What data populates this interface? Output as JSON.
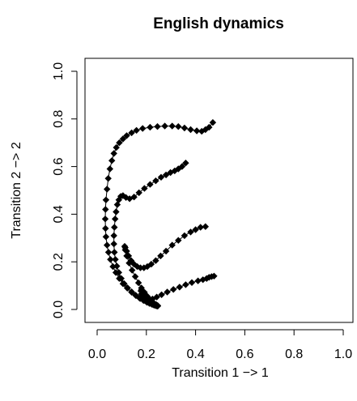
{
  "chart_data": {
    "type": "scatter",
    "title": "English dynamics",
    "xlabel": "Transition 1 −> 1",
    "ylabel": "Transition 2 −> 2",
    "xlim": [
      0,
      1
    ],
    "ylim": [
      0,
      1
    ],
    "xticks": [
      "0.0",
      "0.2",
      "0.4",
      "0.6",
      "0.8",
      "1.0"
    ],
    "yticks": [
      "0.0",
      "0.2",
      "0.4",
      "0.6",
      "0.8",
      "1.0"
    ],
    "grid": false,
    "marker": "diamond",
    "color": "#000000",
    "series": [
      {
        "x": [
          0.47,
          0.455,
          0.44,
          0.425,
          0.405,
          0.38,
          0.355,
          0.33,
          0.305,
          0.275,
          0.245,
          0.215,
          0.185,
          0.16,
          0.14,
          0.12,
          0.105,
          0.09,
          0.078,
          0.068,
          0.06,
          0.052,
          0.045,
          0.04,
          0.036,
          0.034,
          0.033,
          0.034,
          0.036,
          0.04,
          0.046,
          0.054,
          0.064,
          0.076,
          0.09,
          0.105,
          0.122,
          0.14,
          0.158,
          0.175,
          0.19,
          0.203,
          0.214,
          0.224,
          0.232,
          0.238,
          0.243,
          0.246
        ],
        "y": [
          0.785,
          0.765,
          0.755,
          0.748,
          0.75,
          0.755,
          0.762,
          0.768,
          0.77,
          0.77,
          0.768,
          0.765,
          0.76,
          0.752,
          0.742,
          0.73,
          0.716,
          0.7,
          0.68,
          0.655,
          0.625,
          0.59,
          0.55,
          0.505,
          0.46,
          0.42,
          0.38,
          0.34,
          0.305,
          0.27,
          0.24,
          0.21,
          0.18,
          0.155,
          0.13,
          0.108,
          0.09,
          0.072,
          0.058,
          0.046,
          0.037,
          0.03,
          0.025,
          0.021,
          0.018,
          0.016,
          0.015,
          0.014
        ]
      },
      {
        "x": [
          0.36,
          0.345,
          0.33,
          0.315,
          0.298,
          0.28,
          0.26,
          0.238,
          0.215,
          0.192,
          0.17,
          0.15,
          0.132,
          0.117,
          0.105,
          0.096,
          0.088,
          0.082,
          0.077,
          0.073,
          0.07,
          0.068,
          0.068,
          0.07,
          0.074,
          0.08,
          0.088,
          0.098,
          0.11,
          0.124,
          0.14,
          0.156,
          0.172,
          0.187,
          0.2,
          0.212,
          0.222,
          0.23,
          0.237,
          0.242
        ],
        "y": [
          0.615,
          0.6,
          0.59,
          0.582,
          0.575,
          0.565,
          0.555,
          0.54,
          0.525,
          0.508,
          0.49,
          0.472,
          0.465,
          0.47,
          0.478,
          0.475,
          0.46,
          0.44,
          0.41,
          0.38,
          0.345,
          0.31,
          0.275,
          0.24,
          0.21,
          0.182,
          0.155,
          0.13,
          0.108,
          0.09,
          0.074,
          0.06,
          0.048,
          0.039,
          0.032,
          0.026,
          0.022,
          0.019,
          0.017,
          0.015
        ]
      },
      {
        "x": [
          0.44,
          0.42,
          0.4,
          0.38,
          0.355,
          0.33,
          0.305,
          0.28,
          0.258,
          0.238,
          0.22,
          0.204,
          0.19,
          0.176,
          0.163,
          0.15,
          0.138,
          0.128,
          0.12,
          0.114,
          0.112,
          0.114,
          0.12,
          0.13,
          0.142,
          0.155,
          0.168,
          0.18,
          0.192,
          0.203,
          0.213,
          0.222,
          0.23,
          0.237,
          0.242,
          0.246
        ],
        "y": [
          0.348,
          0.345,
          0.335,
          0.325,
          0.31,
          0.29,
          0.27,
          0.245,
          0.225,
          0.205,
          0.19,
          0.18,
          0.175,
          0.175,
          0.18,
          0.19,
          0.205,
          0.225,
          0.245,
          0.26,
          0.265,
          0.25,
          0.225,
          0.195,
          0.165,
          0.138,
          0.112,
          0.09,
          0.072,
          0.056,
          0.044,
          0.034,
          0.027,
          0.021,
          0.018,
          0.016
        ]
      },
      {
        "x": [
          0.475,
          0.465,
          0.455,
          0.445,
          0.43,
          0.41,
          0.385,
          0.36,
          0.335,
          0.31,
          0.285,
          0.262,
          0.242,
          0.225,
          0.21,
          0.198,
          0.19,
          0.184,
          0.18,
          0.178,
          0.18,
          0.186,
          0.195,
          0.206,
          0.218,
          0.23,
          0.24,
          0.246
        ],
        "y": [
          0.14,
          0.138,
          0.135,
          0.13,
          0.125,
          0.12,
          0.113,
          0.104,
          0.094,
          0.084,
          0.073,
          0.062,
          0.052,
          0.044,
          0.038,
          0.036,
          0.04,
          0.05,
          0.065,
          0.078,
          0.082,
          0.072,
          0.058,
          0.045,
          0.034,
          0.026,
          0.02,
          0.016
        ]
      }
    ]
  }
}
